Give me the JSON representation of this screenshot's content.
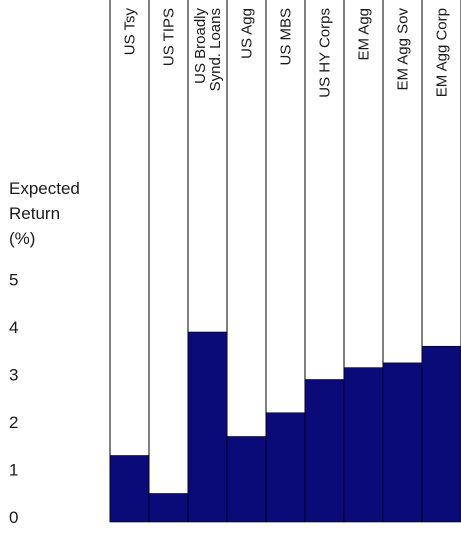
{
  "chart_data": {
    "type": "bar",
    "title": "",
    "xlabel": "",
    "ylabel_lines": [
      "Expected",
      "Return",
      "(%)"
    ],
    "categories": [
      [
        "US Tsy"
      ],
      [
        "US TIPS"
      ],
      [
        "US Broadly",
        "Synd. Loans"
      ],
      [
        "US Agg"
      ],
      [
        "US MBS"
      ],
      [
        "US HY Corps"
      ],
      [
        "EM Agg"
      ],
      [
        "EM Agg Sov"
      ],
      [
        "EM Agg Corp"
      ]
    ],
    "values": [
      1.4,
      0.6,
      4.0,
      1.8,
      2.3,
      3.0,
      3.25,
      3.35,
      3.7
    ],
    "ylim": [
      0,
      5
    ],
    "yticks": [
      "0",
      "1",
      "2",
      "3",
      "4",
      "5"
    ],
    "bar_color": "#0a0a78",
    "grid": false,
    "legend": "none"
  }
}
